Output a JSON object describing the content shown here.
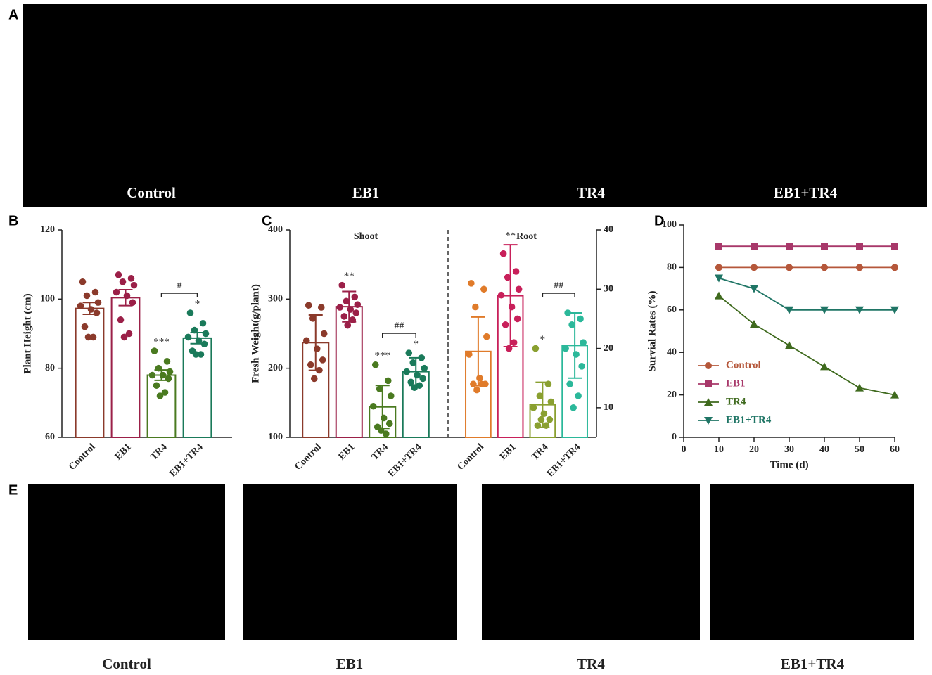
{
  "panel_labels": [
    "A",
    "B",
    "C",
    "D",
    "E"
  ],
  "photos_a": [
    "Control",
    "EB1",
    "TR4",
    "EB1+TR4"
  ],
  "photos_e": [
    "Control",
    "EB1",
    "TR4",
    "EB1+TR4"
  ],
  "chart_data": [
    {
      "type": "bar-dot",
      "ylabel": "Plant Height (cm)",
      "ylim": [
        60,
        120
      ],
      "yticks": [
        60,
        80,
        100,
        120
      ],
      "groups": [
        {
          "axis": "y",
          "categories": [
            "Control",
            "EB1",
            "TR4",
            "EB1+TR4"
          ],
          "colors": [
            "#8b3a2b",
            "#9b2048",
            "#4a7a20",
            "#1a7a5a"
          ],
          "values": [
            97.3,
            100.4,
            78,
            88.7
          ],
          "errors": [
            1.7,
            2.3,
            1.5,
            1.6
          ],
          "points": [
            [
              105,
              102,
              101,
              99,
              98,
              97,
              96,
              92,
              89,
              89
            ],
            [
              107,
              106,
              105,
              104,
              102,
              101,
              99,
              94,
              90,
              89
            ],
            [
              85,
              82,
              80,
              79,
              78,
              78,
              77,
              75,
              73,
              72
            ],
            [
              96,
              93,
              91,
              90,
              89,
              88,
              87,
              85,
              84,
              84
            ]
          ],
          "significance": [
            null,
            null,
            "***",
            "*"
          ],
          "bracket": {
            "label": "#",
            "from": "TR4",
            "to": "EB1+TR4"
          }
        }
      ]
    },
    {
      "type": "bar-dot",
      "ylabel": "Fresh Weight(g/plant)",
      "ylim": [
        100,
        400
      ],
      "yticks": [
        100,
        200,
        300,
        400
      ],
      "y2lim": [
        5,
        40
      ],
      "y2ticks": [
        10,
        20,
        30,
        40
      ],
      "groups": [
        {
          "label": "Shoot",
          "axis": "y",
          "categories": [
            "Control",
            "EB1",
            "TR4",
            "EB1+TR4"
          ],
          "colors": [
            "#8b3a2b",
            "#9b2048",
            "#4a7a20",
            "#1a7a5a"
          ],
          "values": [
            237,
            289,
            144,
            195
          ],
          "errors": [
            40,
            22,
            31,
            20
          ],
          "points": [
            [
              291,
              288,
              272,
              250,
              240,
              228,
              212,
              205,
              197,
              185
            ],
            [
              320,
              303,
              297,
              292,
              288,
              285,
              280,
              275,
              270,
              262
            ],
            [
              205,
              182,
              170,
              160,
              145,
              128,
              120,
              115,
              105,
              110
            ],
            [
              222,
              215,
              208,
              200,
              195,
              190,
              185,
              180,
              175,
              172
            ]
          ],
          "significance": [
            null,
            "**",
            "***",
            "*"
          ],
          "bracket": {
            "label": "##",
            "from": "TR4",
            "to": "EB1+TR4"
          }
        },
        {
          "label": "Root",
          "axis": "y2",
          "categories": [
            "Control",
            "EB1",
            "TR4",
            "EB1+TR4"
          ],
          "colors": [
            "#e07b2a",
            "#c8205a",
            "#8aa030",
            "#2bb89a"
          ],
          "values": [
            19.5,
            28.9,
            10.5,
            20.5
          ],
          "errors": [
            5.8,
            8.6,
            3.8,
            5.5
          ],
          "points": [
            [
              31,
              30,
              27,
              22,
              19,
              15,
              14,
              14,
              14,
              13
            ],
            [
              36,
              33,
              32,
              30,
              29,
              27,
              25,
              24,
              21,
              20
            ],
            [
              20,
              14,
              12,
              11,
              10,
              9,
              8,
              7,
              7,
              8
            ],
            [
              26,
              25,
              24,
              21,
              20,
              19,
              17,
              14,
              12,
              10
            ]
          ],
          "significance": [
            null,
            "**",
            "*",
            null
          ],
          "bracket": {
            "label": "##",
            "from": "TR4",
            "to": "EB1+TR4"
          }
        }
      ]
    },
    {
      "type": "line",
      "xlabel": "Time (d)",
      "ylabel": "Survial Rates (%)",
      "x": [
        10,
        20,
        30,
        40,
        50,
        60
      ],
      "xlim": [
        0,
        60
      ],
      "xticks": [
        0,
        10,
        20,
        30,
        40,
        50,
        60
      ],
      "ylim": [
        0,
        100
      ],
      "yticks": [
        0,
        20,
        40,
        60,
        80,
        100
      ],
      "legend": "lower-left",
      "series": [
        {
          "name": "Control",
          "color": "#b5573a",
          "marker": "circle",
          "values": [
            80,
            80,
            80,
            80,
            80,
            80
          ]
        },
        {
          "name": "EB1",
          "color": "#a8386a",
          "marker": "square",
          "values": [
            90,
            90,
            90,
            90,
            90,
            90
          ]
        },
        {
          "name": "TR4",
          "color": "#3f6a1e",
          "marker": "triangle-up",
          "values": [
            66.7,
            53.3,
            43.3,
            33.3,
            23.3,
            20
          ]
        },
        {
          "name": "EB1+TR4",
          "color": "#1f7565",
          "marker": "triangle-down",
          "values": [
            75,
            70,
            60,
            60,
            60,
            60
          ]
        }
      ]
    }
  ]
}
